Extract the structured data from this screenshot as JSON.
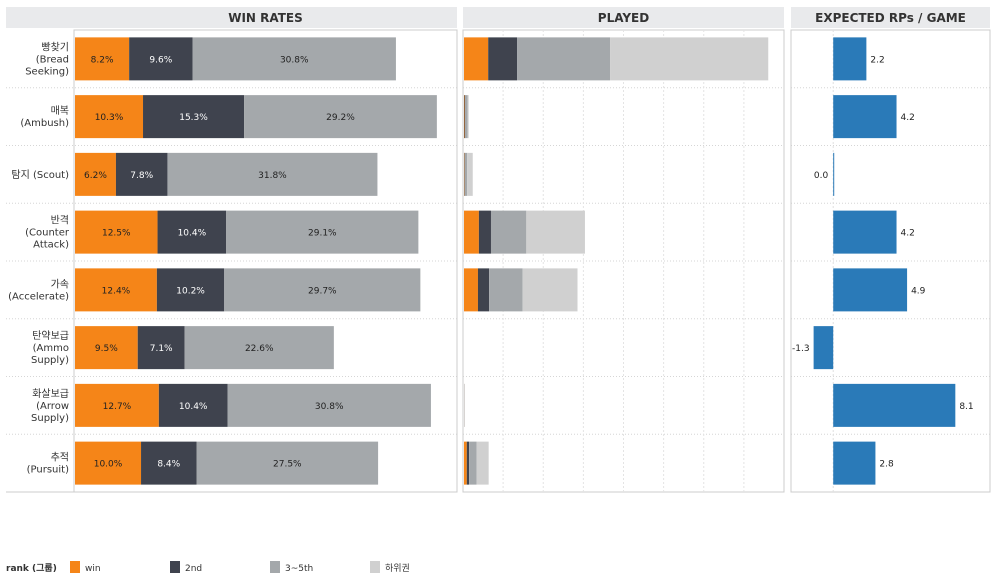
{
  "chart_data": [
    {
      "type": "bar",
      "orientation": "horizontal",
      "stacked": true,
      "title": "WIN RATES",
      "categories": [
        "빵찾기\n(Bread\nSeeking)",
        "매복\n(Ambush)",
        "탐지 (Scout)",
        "반격\n(Counter\nAttack)",
        "가속\n(Accelerate)",
        "탄약보급\n(Ammo\nSupply)",
        "화살보급\n(Arrow\nSupply)",
        "추적\n(Pursuit)"
      ],
      "series": [
        {
          "name": "win",
          "values": [
            8.2,
            10.3,
            6.2,
            12.5,
            12.4,
            9.5,
            12.7,
            10.0
          ],
          "labels": [
            "8.2%",
            "10.3%",
            "6.2%",
            "12.5%",
            "12.4%",
            "9.5%",
            "12.7%",
            "10.0%"
          ]
        },
        {
          "name": "2nd",
          "values": [
            9.6,
            15.3,
            7.8,
            10.4,
            10.2,
            7.1,
            10.4,
            8.4
          ],
          "labels": [
            "9.6%",
            "15.3%",
            "7.8%",
            "10.4%",
            "10.2%",
            "7.1%",
            "10.4%",
            "8.4%"
          ]
        },
        {
          "name": "3~5th",
          "values": [
            30.8,
            29.2,
            31.8,
            29.1,
            29.7,
            22.6,
            30.8,
            27.5
          ],
          "labels": [
            "30.8%",
            "29.2%",
            "31.8%",
            "29.1%",
            "29.7%",
            "22.6%",
            "30.8%",
            "27.5%"
          ]
        }
      ],
      "xlim": [
        0,
        58
      ]
    },
    {
      "type": "bar",
      "orientation": "horizontal",
      "stacked": true,
      "title": "PLAYED",
      "categories": [
        "빵찾기\n(Bread\nSeeking)",
        "매복\n(Ambush)",
        "탐지 (Scout)",
        "반격\n(Counter\nAttack)",
        "가속\n(Accelerate)",
        "탄약보급\n(Ammo\nSupply)",
        "화살보급\n(Arrow\nSupply)",
        "추적\n(Pursuit)"
      ],
      "series": [
        {
          "name": "win",
          "values": [
            26,
            0.5,
            0.4,
            16,
            15,
            0,
            0.1,
            3
          ]
        },
        {
          "name": "2nd",
          "values": [
            31,
            0.8,
            0.5,
            13,
            12,
            0,
            0.1,
            2.5
          ]
        },
        {
          "name": "3~5th",
          "values": [
            100,
            2.5,
            2.5,
            38,
            36,
            0,
            0.3,
            8
          ]
        },
        {
          "name": "하위권",
          "values": [
            170,
            1.2,
            6,
            63,
            59,
            0,
            0.2,
            13
          ]
        }
      ],
      "xlim": [
        0,
        345
      ]
    },
    {
      "type": "bar",
      "orientation": "horizontal",
      "title": "EXPECTED RPs / GAME",
      "categories": [
        "빵찾기\n(Bread\nSeeking)",
        "매복\n(Ambush)",
        "탐지 (Scout)",
        "반격\n(Counter\nAttack)",
        "가속\n(Accelerate)",
        "탄약보급\n(Ammo\nSupply)",
        "화살보급\n(Arrow\nSupply)",
        "추적\n(Pursuit)"
      ],
      "values": [
        2.2,
        4.2,
        0.0,
        4.2,
        4.9,
        -1.3,
        8.1,
        2.8
      ],
      "labels": [
        "2.2",
        "4.2",
        "0.0",
        "4.2",
        "4.9",
        "-1.3",
        "8.1",
        "2.8"
      ],
      "xlim": [
        -2.8,
        10.4
      ]
    }
  ],
  "legend": {
    "title": "rank (그룹)",
    "position": "bottom",
    "items": [
      {
        "name": "win",
        "color": "#f58518"
      },
      {
        "name": "2nd",
        "color": "#3f434e"
      },
      {
        "name": "3~5th",
        "color": "#a4a8ab"
      },
      {
        "name": "하위권",
        "color": "#d0d0d0"
      }
    ]
  },
  "colors": {
    "win": "#f58518",
    "second": "#3f434e",
    "third": "#a4a8ab",
    "rest": "#d0d0d0",
    "rp": "#2a7ab8",
    "header_bg": "#e9eaec",
    "border": "#cccccc"
  }
}
